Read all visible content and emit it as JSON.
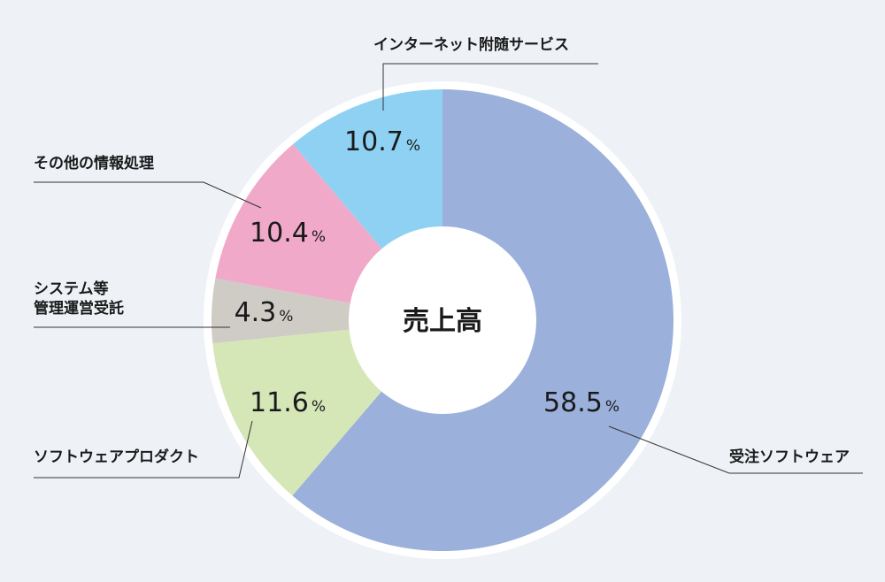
{
  "chart_data": {
    "type": "pie",
    "center_label": "売上高",
    "unit": "%",
    "slices": [
      {
        "label": "受注ソフトウェア",
        "value": 58.5,
        "value_text": "58.5",
        "color": "#9bb0da"
      },
      {
        "label": "ソフトウェアプロダクト",
        "value": 11.6,
        "value_text": "11.6",
        "color": "#d5e6b7"
      },
      {
        "label": "システム等\n管理運営受託",
        "value": 4.3,
        "value_text": "4.3",
        "color": "#cfcbc5"
      },
      {
        "label": "その他の情報処理",
        "value": 10.4,
        "value_text": "10.4",
        "color": "#f1a9c9"
      },
      {
        "label": "インターネット附随サービス",
        "value": 10.7,
        "value_text": "10.7",
        "color": "#8fd1f3"
      }
    ]
  }
}
